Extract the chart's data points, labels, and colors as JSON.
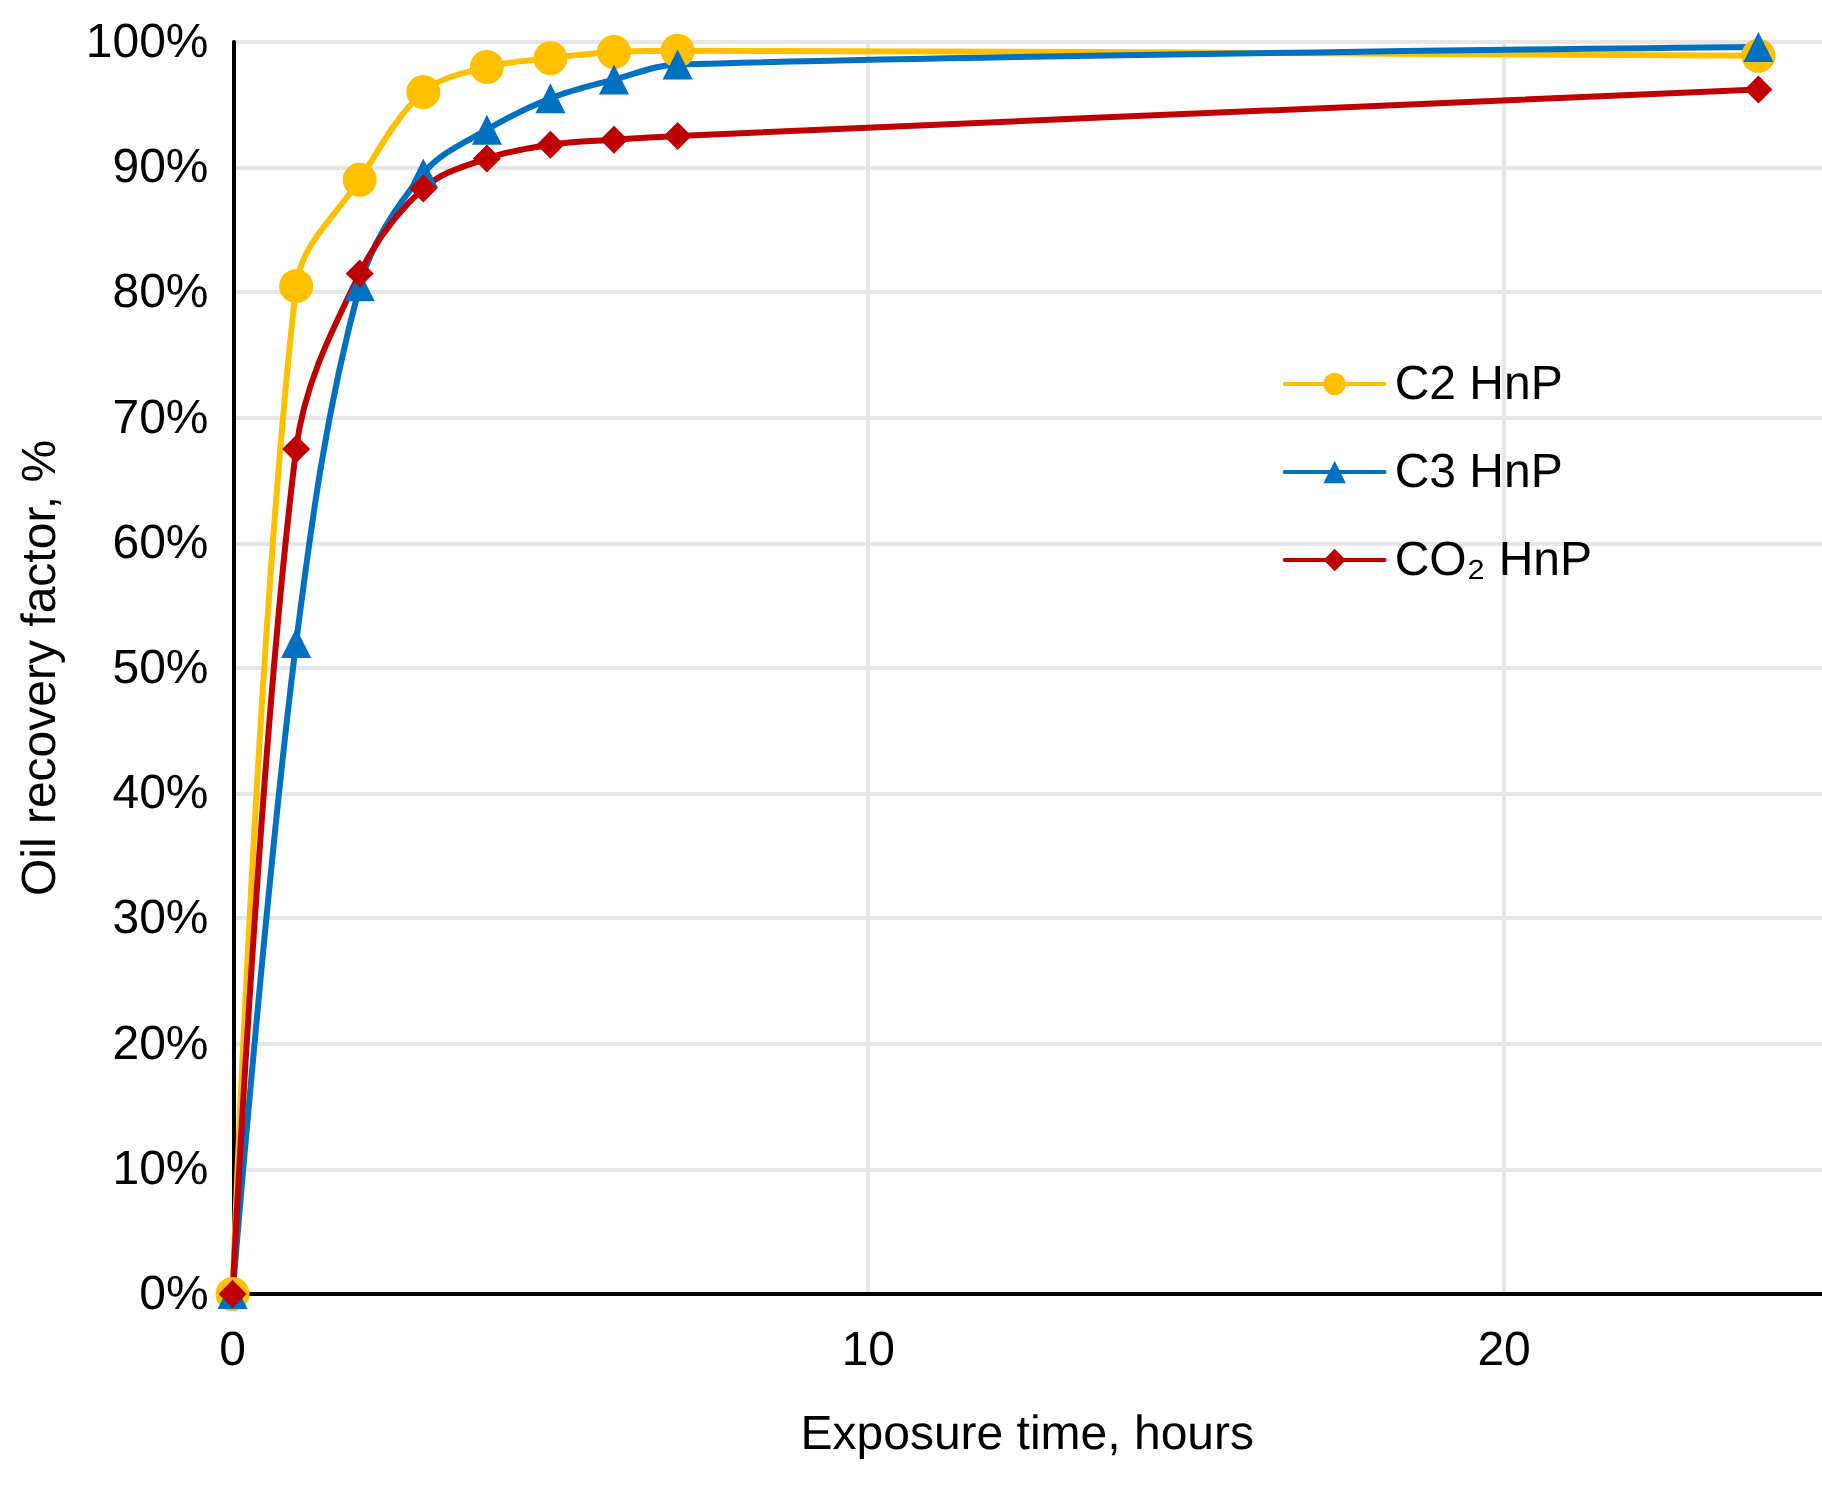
{
  "chart_data": {
    "type": "line",
    "xlabel": "Exposure time, hours",
    "ylabel": "Oil recovery factor, %",
    "x": [
      0,
      1,
      2,
      3,
      4,
      5,
      6,
      7,
      24
    ],
    "series": [
      {
        "name": "C2 HnP",
        "color": "#ffc000",
        "marker": "circle",
        "values": [
          0,
          80.5,
          89,
          96,
          98,
          98.7,
          99.2,
          99.3,
          98.9
        ]
      },
      {
        "name": "C3 HnP",
        "color": "#0070c0",
        "marker": "triangle",
        "values": [
          0,
          52,
          80.5,
          89.5,
          93,
          95.5,
          97,
          98.2,
          99.6
        ]
      },
      {
        "name": "CO₂ HnP",
        "color": "#c00000",
        "marker": "diamond",
        "values": [
          0,
          67.5,
          81.5,
          88.3,
          90.7,
          91.8,
          92.2,
          92.5,
          96.2
        ]
      }
    ],
    "xlim": [
      0,
      25
    ],
    "xticks": [
      0,
      10,
      20
    ],
    "ylim": [
      0,
      100
    ],
    "yticks": [
      {
        "value": 0,
        "label": "0%"
      },
      {
        "value": 10,
        "label": "10%"
      },
      {
        "value": 20,
        "label": "20%"
      },
      {
        "value": 30,
        "label": "30%"
      },
      {
        "value": 40,
        "label": "40%"
      },
      {
        "value": 50,
        "label": "50%"
      },
      {
        "value": 60,
        "label": "60%"
      },
      {
        "value": 70,
        "label": "70%"
      },
      {
        "value": 80,
        "label": "80%"
      },
      {
        "value": 90,
        "label": "90%"
      },
      {
        "value": 100,
        "label": "100%"
      }
    ],
    "grid": true,
    "legend": "right",
    "line_style": "solid"
  }
}
